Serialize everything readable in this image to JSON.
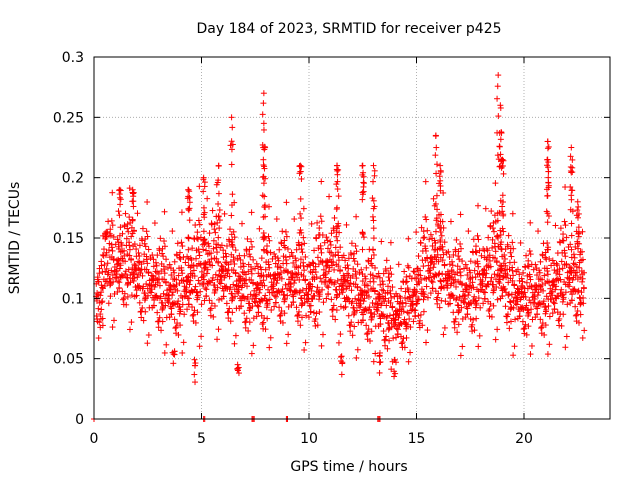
{
  "chart_data": {
    "type": "scatter",
    "title": "Day 184 of 2023, SRMTID for receiver p425",
    "xlabel": "GPS time / hours",
    "ylabel": "SRMTID / TECUs",
    "xlim": [
      0,
      24
    ],
    "ylim": [
      0,
      0.3
    ],
    "x_ticks": [
      0,
      5,
      10,
      15,
      20
    ],
    "x_tick_labels": [
      "0",
      "5",
      "10",
      "15",
      "20"
    ],
    "y_ticks": [
      0,
      0.05,
      0.1,
      0.15,
      0.2,
      0.25,
      0.3
    ],
    "y_tick_labels": [
      "0",
      "0.05",
      "0.1",
      "0.15",
      "0.2",
      "0.25",
      "0.3"
    ],
    "grid": true,
    "marker": "+",
    "color": "#ff0000",
    "density_profile": {
      "x": [
        0.1,
        0.5,
        1,
        1.5,
        2,
        2.5,
        3,
        3.5,
        4,
        4.5,
        5,
        5.5,
        6,
        6.5,
        7,
        7.5,
        8,
        8.5,
        9,
        9.5,
        10,
        10.5,
        11,
        11.5,
        12,
        12.5,
        13,
        13.5,
        14,
        14.5,
        15,
        15.5,
        16,
        16.5,
        17,
        17.5,
        18,
        18.5,
        19,
        19.5,
        20,
        20.5,
        21,
        21.5,
        22,
        22.5,
        22.8
      ],
      "mean": [
        0.085,
        0.125,
        0.12,
        0.125,
        0.115,
        0.11,
        0.105,
        0.1,
        0.1,
        0.11,
        0.115,
        0.12,
        0.115,
        0.11,
        0.105,
        0.1,
        0.105,
        0.11,
        0.11,
        0.11,
        0.1,
        0.115,
        0.12,
        0.11,
        0.1,
        0.095,
        0.095,
        0.09,
        0.08,
        0.085,
        0.1,
        0.12,
        0.125,
        0.11,
        0.1,
        0.1,
        0.11,
        0.12,
        0.115,
        0.1,
        0.095,
        0.1,
        0.1,
        0.105,
        0.115,
        0.11,
        0.1
      ],
      "spread": [
        0.02,
        0.025,
        0.03,
        0.03,
        0.03,
        0.03,
        0.03,
        0.03,
        0.03,
        0.03,
        0.035,
        0.035,
        0.03,
        0.03,
        0.03,
        0.03,
        0.03,
        0.03,
        0.03,
        0.03,
        0.03,
        0.035,
        0.035,
        0.03,
        0.03,
        0.03,
        0.03,
        0.03,
        0.025,
        0.025,
        0.03,
        0.035,
        0.03,
        0.03,
        0.03,
        0.03,
        0.03,
        0.035,
        0.03,
        0.03,
        0.025,
        0.03,
        0.03,
        0.03,
        0.035,
        0.03,
        0.02
      ]
    },
    "peak_clusters": [
      {
        "x": 1.2,
        "y": 0.19
      },
      {
        "x": 1.8,
        "y": 0.19
      },
      {
        "x": 4.4,
        "y": 0.19
      },
      {
        "x": 5.1,
        "y": 0.2
      },
      {
        "x": 5.8,
        "y": 0.21
      },
      {
        "x": 6.4,
        "y": 0.25
      },
      {
        "x": 7.9,
        "y": 0.27
      },
      {
        "x": 7.9,
        "y": 0.245
      },
      {
        "x": 9.6,
        "y": 0.21
      },
      {
        "x": 11.3,
        "y": 0.21
      },
      {
        "x": 12.5,
        "y": 0.21
      },
      {
        "x": 13.0,
        "y": 0.21
      },
      {
        "x": 15.9,
        "y": 0.235
      },
      {
        "x": 16.1,
        "y": 0.21
      },
      {
        "x": 18.8,
        "y": 0.285
      },
      {
        "x": 18.9,
        "y": 0.26
      },
      {
        "x": 19.0,
        "y": 0.215
      },
      {
        "x": 21.1,
        "y": 0.23
      },
      {
        "x": 21.1,
        "y": 0.215
      },
      {
        "x": 22.2,
        "y": 0.225
      },
      {
        "x": 22.5,
        "y": 0.18
      }
    ],
    "low_clusters": [
      {
        "x": 4.7,
        "y": 0.03
      },
      {
        "x": 6.7,
        "y": 0.03
      },
      {
        "x": 11.5,
        "y": 0.035
      },
      {
        "x": 13.3,
        "y": 0.035
      },
      {
        "x": 14.0,
        "y": 0.03
      },
      {
        "x": 3.7,
        "y": 0.04
      }
    ],
    "zero_points": [
      0,
      5.1,
      5.15,
      7.35,
      7.4,
      7.45,
      8.95,
      9.0,
      13.2,
      13.25,
      13.3
    ]
  }
}
